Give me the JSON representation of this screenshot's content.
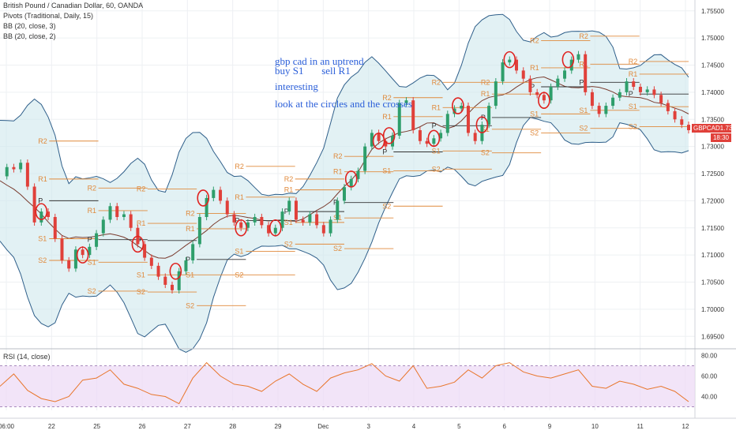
{
  "legend": {
    "symbol": "British Pound / Canadian Dollar, 60, OANDA",
    "pivots": "Pivots (Traditional, Daily, 15)",
    "bb1": "BB (20, close, 3)",
    "bb2": "BB (20, close, 2)",
    "rsi": "RSI (14, close)"
  },
  "notes": {
    "line1": "gbp cad in an uptrend",
    "line2": "buy S1       sell R1",
    "line3": "interesting",
    "line4": "look at the circles and the crosses"
  },
  "price_badge": {
    "symbol": "GBPCAD",
    "price": "1.73295",
    "countdown": "18:30"
  },
  "colors": {
    "bb_fill": "#cfe8ec",
    "bb_line": "#2f5f8a",
    "basis": "#7a3b2e",
    "up": "#2e9e6b",
    "down": "#e0403a",
    "pivot_r": "#e08a3c",
    "rsi": "#e8762c",
    "rsi_band": "#ecd8f5",
    "circle": "#e0221f",
    "note": "#2b5fd9"
  },
  "chart_data": {
    "type": "line",
    "title": "British Pound / Canadian Dollar, 60, OANDA",
    "x_ticks": [
      "06:00",
      "22",
      "25",
      "26",
      "27",
      "28",
      "29",
      "Dec",
      "3",
      "4",
      "5",
      "6",
      "9",
      "10",
      "11",
      "12"
    ],
    "y_ticks": [
      "1.75500",
      "1.75000",
      "1.74500",
      "1.74000",
      "1.73500",
      "1.73000",
      "1.72500",
      "1.72000",
      "1.71500",
      "1.71000",
      "1.70500",
      "1.70000",
      "1.69500"
    ],
    "ylim": [
      1.693,
      1.757
    ],
    "rsi_ticks": [
      "80.00",
      "60.00",
      "40.00"
    ],
    "rsi_ylim": [
      25,
      85
    ],
    "series": [
      {
        "name": "price",
        "x": [
          0,
          2,
          4,
          6,
          8,
          10,
          12,
          14,
          16,
          18,
          20,
          22,
          24,
          26,
          28,
          30,
          32,
          34,
          36,
          38,
          40,
          42,
          44,
          46,
          48,
          50,
          52,
          54,
          56,
          58,
          60,
          62,
          64,
          66,
          68,
          70,
          72,
          74,
          76,
          78,
          80,
          82,
          84,
          86,
          88,
          90,
          92,
          94,
          96,
          98,
          100,
          102,
          104,
          106,
          108,
          110,
          112,
          114,
          116,
          118,
          120,
          122,
          124,
          126,
          128,
          130,
          132,
          134,
          136,
          138,
          140,
          142,
          144,
          146,
          148,
          150,
          152,
          154,
          156,
          158,
          160,
          162,
          164,
          166,
          168,
          170,
          172,
          174,
          176,
          178,
          180,
          182,
          184,
          186,
          188,
          190,
          192,
          194,
          196,
          198,
          200
        ],
        "values": [
          1.7245,
          1.7262,
          1.7258,
          1.727,
          1.7226,
          1.716,
          1.718,
          1.717,
          1.713,
          1.709,
          1.7075,
          1.711,
          1.71,
          1.7115,
          1.714,
          1.7165,
          1.719,
          1.717,
          1.7175,
          1.715,
          1.712,
          1.7095,
          1.708,
          1.706,
          1.7045,
          1.7035,
          1.707,
          1.709,
          1.712,
          1.717,
          1.7205,
          1.722,
          1.72,
          1.7175,
          1.716,
          1.715,
          1.716,
          1.717,
          1.7155,
          1.714,
          1.715,
          1.718,
          1.72,
          1.7165,
          1.716,
          1.7175,
          1.7155,
          1.714,
          1.7165,
          1.72,
          1.7225,
          1.724,
          1.7255,
          1.73,
          1.7325,
          1.731,
          1.73,
          1.732,
          1.738,
          1.7385,
          1.733,
          1.731,
          1.7305,
          1.7315,
          1.7325,
          1.736,
          1.737,
          1.7375,
          1.7325,
          1.731,
          1.734,
          1.7375,
          1.742,
          1.7455,
          1.746,
          1.744,
          1.7425,
          1.74,
          1.7395,
          1.7385,
          1.741,
          1.7425,
          1.744,
          1.746,
          1.747,
          1.74,
          1.7375,
          1.736,
          1.7375,
          1.739,
          1.74,
          1.742,
          1.741,
          1.74,
          1.7405,
          1.7395,
          1.738,
          1.7365,
          1.735,
          1.734,
          1.733
        ]
      },
      {
        "name": "rsi",
        "x": [
          0,
          4,
          8,
          12,
          16,
          20,
          24,
          28,
          32,
          36,
          40,
          44,
          48,
          52,
          56,
          60,
          64,
          68,
          72,
          76,
          80,
          84,
          88,
          92,
          96,
          100,
          104,
          108,
          112,
          116,
          120,
          124,
          128,
          132,
          136,
          140,
          144,
          148,
          152,
          156,
          160,
          164,
          168,
          172,
          176,
          180,
          184,
          188,
          192,
          196,
          200
        ],
        "values": [
          50,
          62,
          46,
          38,
          35,
          40,
          56,
          58,
          66,
          52,
          48,
          42,
          40,
          33,
          58,
          73,
          60,
          52,
          50,
          45,
          55,
          62,
          52,
          45,
          58,
          63,
          66,
          72,
          60,
          55,
          70,
          48,
          50,
          54,
          66,
          58,
          70,
          73,
          64,
          60,
          58,
          62,
          66,
          50,
          48,
          55,
          52,
          47,
          50,
          45,
          35
        ]
      }
    ],
    "pivot_labels": [
      "R2",
      "R1",
      "P",
      "S1",
      "S2"
    ]
  }
}
